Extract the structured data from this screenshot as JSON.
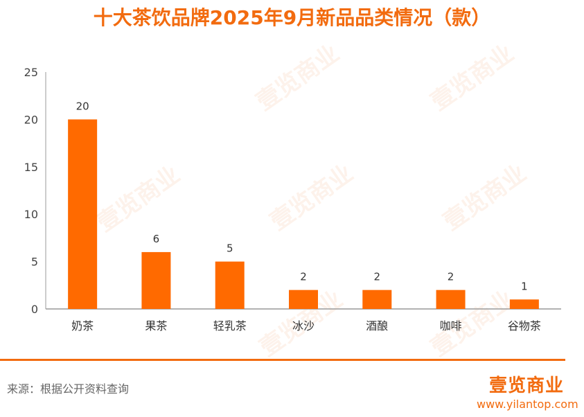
{
  "header": {
    "title": "十大茶饮品牌2025年9月新品品类情况（款）"
  },
  "footer": {
    "source": "来源：根据公开资料查询",
    "brand": "壹览商业",
    "url": "www.yilantop.com"
  },
  "watermark": {
    "text": "壹览商业"
  },
  "colors": {
    "accent": "#f26b0f",
    "bar": "#ff6a00",
    "axis": "#999999",
    "text": "#333333"
  },
  "chart_data": {
    "type": "bar",
    "title": "十大茶饮品牌2025年9月新品品类情况（款）",
    "categories": [
      "奶茶",
      "果茶",
      "轻乳茶",
      "冰沙",
      "酒酿",
      "咖啡",
      "谷物茶"
    ],
    "values": [
      20,
      6,
      5,
      2,
      2,
      2,
      1
    ],
    "data_labels": [
      "20",
      "6",
      "5",
      "2",
      "2",
      "2",
      "1"
    ],
    "yticks": [
      "0",
      "5",
      "10",
      "15",
      "20",
      "25"
    ],
    "ylim": [
      0,
      25
    ],
    "xlabel": "",
    "ylabel": "",
    "grid": false,
    "legend": "none"
  }
}
